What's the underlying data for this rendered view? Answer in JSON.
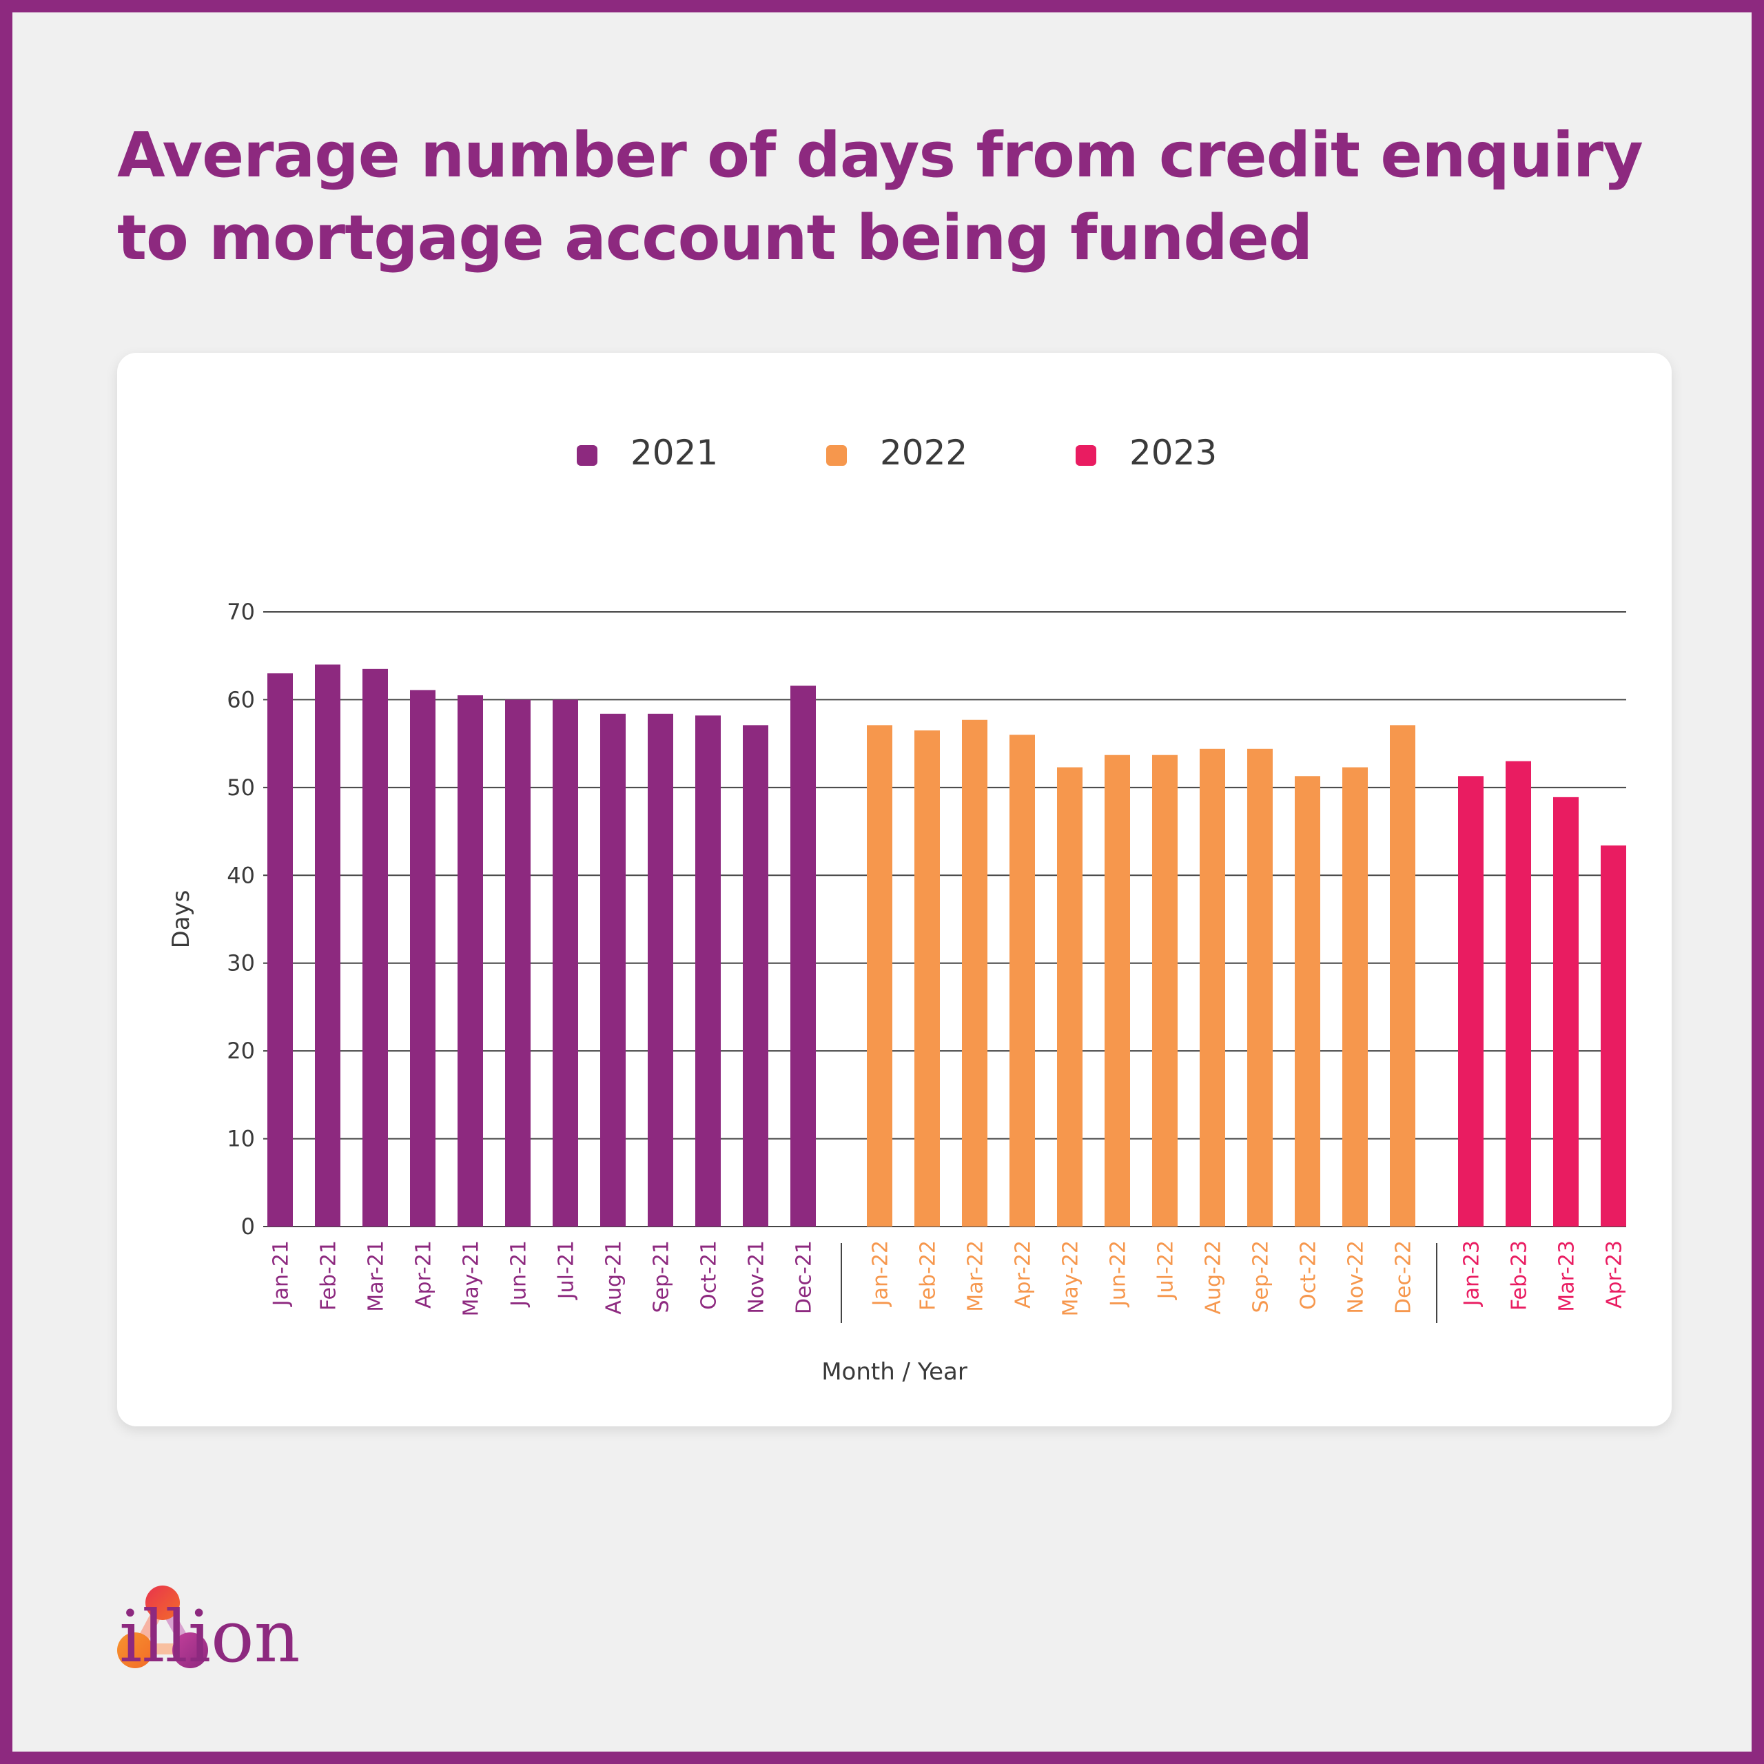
{
  "title": "Average number of days from credit enquiry to mortgage account being funded",
  "brand": {
    "name": "illion",
    "logo_icon": "illion-logo-icon"
  },
  "colors": {
    "brand_purple": "#8d297f",
    "y2021": "#8d297f",
    "y2022": "#f6974d",
    "y2023": "#e91c61",
    "text": "#3a3a3a",
    "grid": "#444444",
    "background": "#f0f0f0"
  },
  "chart_data": {
    "type": "bar",
    "title": "Average number of days from credit enquiry to mortgage account being funded",
    "xlabel": "Month / Year",
    "ylabel": "Days",
    "ylim": [
      0,
      70
    ],
    "yticks": [
      0,
      10,
      20,
      30,
      40,
      50,
      60,
      70
    ],
    "grid": true,
    "legend_position": "top-center",
    "legend": [
      "2021",
      "2022",
      "2023"
    ],
    "series": [
      {
        "name": "2021",
        "color": "#8d297f",
        "categories": [
          "Jan-21",
          "Feb-21",
          "Mar-21",
          "Apr-21",
          "May-21",
          "Jun-21",
          "Jul-21",
          "Aug-21",
          "Sep-21",
          "Oct-21",
          "Nov-21",
          "Dec-21"
        ],
        "values": [
          63.0,
          64.0,
          63.5,
          61.1,
          60.5,
          60.0,
          60.0,
          58.4,
          58.4,
          58.2,
          57.1,
          61.6
        ]
      },
      {
        "name": "2022",
        "color": "#f6974d",
        "categories": [
          "Jan-22",
          "Feb-22",
          "Mar-22",
          "Apr-22",
          "May-22",
          "Jun-22",
          "Jul-22",
          "Aug-22",
          "Sep-22",
          "Oct-22",
          "Nov-22",
          "Dec-22"
        ],
        "values": [
          57.1,
          56.5,
          57.7,
          56.0,
          52.3,
          53.7,
          53.7,
          54.4,
          54.4,
          51.3,
          52.3,
          57.1
        ]
      },
      {
        "name": "2023",
        "color": "#e91c61",
        "categories": [
          "Jan-23",
          "Feb-23",
          "Mar-23",
          "Apr-23"
        ],
        "values": [
          51.3,
          53.0,
          48.9,
          43.4
        ]
      }
    ]
  }
}
